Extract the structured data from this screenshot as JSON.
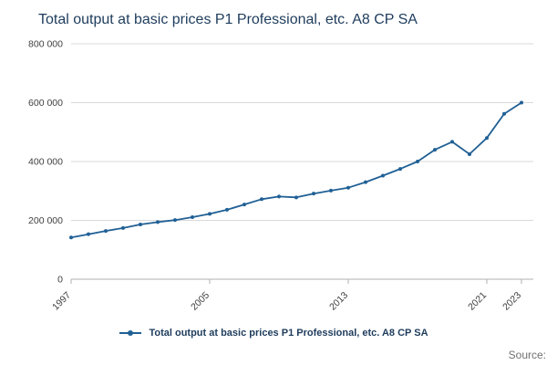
{
  "header": {
    "title": "Total output at basic prices P1 Professional, etc. A8 CP SA"
  },
  "legend": {
    "label": "Total output at basic prices P1 Professional, etc. A8 CP SA"
  },
  "source": {
    "label": "Source:"
  },
  "colors": {
    "line": "#206095",
    "title": "#1e3c5c",
    "grid": "#d9d9d9",
    "axis": "#b0b0b0",
    "tick_text": "#414042"
  },
  "chart_data": {
    "type": "line",
    "title": "Total output at basic prices P1 Professional, etc. A8 CP SA",
    "xlabel": "",
    "ylabel": "",
    "ylim": [
      0,
      800000
    ],
    "grid": "horizontal",
    "legend_position": "bottom",
    "marker": "circle",
    "ytick_values": [
      0,
      200000,
      400000,
      600000,
      800000
    ],
    "ytick_labels": [
      "0",
      "200 000",
      "400 000",
      "600 000",
      "800 000"
    ],
    "xtick_values": [
      1997,
      2005,
      2013,
      2021,
      2023
    ],
    "xtick_labels": [
      "1997",
      "2005",
      "2013",
      "2021",
      "2023"
    ],
    "series": [
      {
        "name": "Total output at basic prices P1 Professional, etc. A8 CP SA",
        "color": "#206095",
        "x": [
          1997,
          1998,
          1999,
          2000,
          2001,
          2002,
          2003,
          2004,
          2005,
          2006,
          2007,
          2008,
          2009,
          2010,
          2011,
          2012,
          2013,
          2014,
          2015,
          2016,
          2017,
          2018,
          2019,
          2020,
          2021,
          2022,
          2023
        ],
        "values": [
          142000,
          153000,
          164000,
          174000,
          186000,
          194000,
          201000,
          211000,
          222000,
          236000,
          254000,
          272000,
          281000,
          278000,
          291000,
          301000,
          311000,
          330000,
          352000,
          375000,
          400000,
          440000,
          467000,
          425000,
          480000,
          562000,
          600000
        ]
      }
    ]
  }
}
